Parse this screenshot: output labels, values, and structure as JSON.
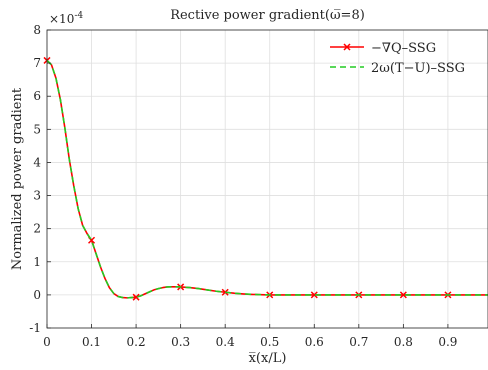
{
  "chart_data": {
    "type": "line",
    "title": "Rective power gradient(ω̅=8)",
    "xlabel": "x̅(x/L)",
    "ylabel": "Normalized power gradient",
    "exponent_label": "×10",
    "exponent_power": "-4",
    "xlim": [
      0,
      0.99
    ],
    "ylim": [
      -1,
      8
    ],
    "xticks": [
      0,
      0.1,
      0.2,
      0.3,
      0.4,
      0.5,
      0.6,
      0.7,
      0.8,
      0.9
    ],
    "xtick_labels": [
      "0",
      "0.1",
      "0.2",
      "0.3",
      "0.4",
      "0.5",
      "0.6",
      "0.7",
      "0.8",
      "0.9"
    ],
    "yticks": [
      -1,
      0,
      1,
      2,
      3,
      4,
      5,
      6,
      7,
      8
    ],
    "ytick_labels": [
      "-1",
      "0",
      "1",
      "2",
      "3",
      "4",
      "5",
      "6",
      "7",
      "8"
    ],
    "grid": true,
    "legend_position": "top-right",
    "x": [
      0,
      0.01,
      0.02,
      0.03,
      0.04,
      0.05,
      0.06,
      0.07,
      0.08,
      0.09,
      0.1,
      0.11,
      0.12,
      0.13,
      0.14,
      0.15,
      0.16,
      0.17,
      0.18,
      0.19,
      0.2,
      0.21,
      0.22,
      0.23,
      0.24,
      0.25,
      0.26,
      0.27,
      0.28,
      0.29,
      0.3,
      0.32,
      0.34,
      0.36,
      0.38,
      0.4,
      0.42,
      0.44,
      0.46,
      0.48,
      0.5,
      0.55,
      0.6,
      0.65,
      0.7,
      0.75,
      0.8,
      0.85,
      0.9,
      0.95,
      0.99
    ],
    "series": [
      {
        "name": "−∇Q–SSG",
        "color": "#ff0000",
        "marker": "x",
        "marker_x": [
          0,
          0.1,
          0.2,
          0.3,
          0.4,
          0.5,
          0.6,
          0.7,
          0.8,
          0.9
        ],
        "values": [
          7.08,
          6.95,
          6.55,
          5.9,
          5.05,
          4.1,
          3.3,
          2.6,
          2.1,
          1.85,
          1.65,
          1.25,
          0.85,
          0.5,
          0.22,
          0.04,
          -0.05,
          -0.08,
          -0.09,
          -0.08,
          -0.07,
          -0.03,
          0.03,
          0.09,
          0.15,
          0.19,
          0.22,
          0.24,
          0.245,
          0.245,
          0.24,
          0.22,
          0.19,
          0.15,
          0.11,
          0.08,
          0.05,
          0.03,
          0.015,
          0.005,
          0.0,
          0.0,
          0.0,
          0.0,
          0.0,
          0.0,
          0.0,
          0.0,
          0.0,
          0.0,
          0.0
        ]
      },
      {
        "name": "2ω(T−U)–SSG",
        "color": "#22cc22",
        "marker": "none",
        "values": [
          7.08,
          6.95,
          6.55,
          5.9,
          5.05,
          4.1,
          3.3,
          2.6,
          2.1,
          1.85,
          1.65,
          1.25,
          0.85,
          0.5,
          0.22,
          0.04,
          -0.05,
          -0.08,
          -0.09,
          -0.08,
          -0.07,
          -0.03,
          0.03,
          0.09,
          0.15,
          0.19,
          0.22,
          0.24,
          0.245,
          0.245,
          0.24,
          0.22,
          0.19,
          0.15,
          0.11,
          0.08,
          0.05,
          0.03,
          0.015,
          0.005,
          0.0,
          0.0,
          0.0,
          0.0,
          0.0,
          0.0,
          0.0,
          0.0,
          0.0,
          0.0,
          0.0
        ]
      }
    ]
  }
}
